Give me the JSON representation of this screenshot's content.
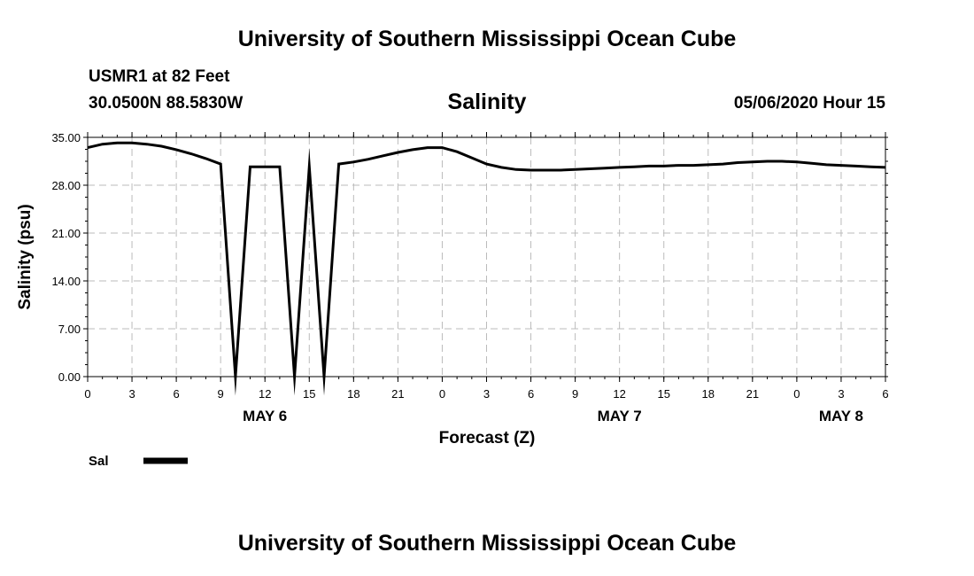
{
  "header": {
    "title": "University of Southern Mississippi Ocean Cube",
    "station": "USMR1 at 82 Feet",
    "coords": "30.0500N 88.5830W",
    "datetime": "05/06/2020 Hour 15"
  },
  "footer": {
    "title": "University of Southern Mississippi Ocean Cube"
  },
  "chart_data": {
    "type": "line",
    "title": "Salinity",
    "xlabel": "Forecast (Z)",
    "ylabel": "Salinity (psu)",
    "x_ticks": [
      "0",
      "3",
      "6",
      "9",
      "12",
      "15",
      "18",
      "21",
      "0",
      "3",
      "6",
      "9",
      "12",
      "15",
      "18",
      "21",
      "0",
      "3",
      "6"
    ],
    "x_tick_hours": [
      0,
      3,
      6,
      9,
      12,
      15,
      18,
      21,
      24,
      27,
      30,
      33,
      36,
      39,
      42,
      45,
      48,
      51,
      54
    ],
    "day_labels": [
      {
        "text": "MAY 6",
        "hour": 12
      },
      {
        "text": "MAY 7",
        "hour": 36
      },
      {
        "text": "MAY 8",
        "hour": 51
      }
    ],
    "xlim": [
      0,
      54
    ],
    "y_ticks": [
      "0.00",
      "7.00",
      "14.00",
      "21.00",
      "28.00",
      "35.00"
    ],
    "ylim": [
      0,
      35
    ],
    "grid": true,
    "line_color": "#000000",
    "series": [
      {
        "name": "Sal",
        "x": [
          0,
          1,
          2,
          3,
          4,
          5,
          6,
          7,
          8,
          9,
          10,
          11,
          12,
          13,
          14,
          15,
          16,
          17,
          18,
          19,
          20,
          21,
          22,
          23,
          24,
          25,
          26,
          27,
          28,
          29,
          30,
          31,
          32,
          33,
          34,
          35,
          36,
          37,
          38,
          39,
          40,
          41,
          42,
          43,
          44,
          45,
          46,
          47,
          48,
          49,
          50,
          51,
          52,
          53,
          54
        ],
        "values": [
          33.5,
          34.0,
          34.2,
          34.2,
          34.0,
          33.7,
          33.2,
          32.6,
          31.9,
          31.1,
          0.0,
          30.7,
          30.7,
          30.7,
          0.0,
          30.7,
          0.0,
          31.1,
          31.4,
          31.8,
          32.3,
          32.8,
          33.2,
          33.5,
          33.5,
          32.9,
          32.0,
          31.1,
          30.6,
          30.3,
          30.2,
          30.2,
          30.2,
          30.3,
          30.4,
          30.5,
          30.6,
          30.7,
          30.8,
          30.8,
          30.9,
          30.9,
          31.0,
          31.1,
          31.3,
          31.4,
          31.5,
          31.5,
          31.4,
          31.2,
          31.0,
          30.9,
          30.8,
          30.7,
          30.6
        ]
      }
    ],
    "legend": {
      "placement": "bottom-left"
    }
  }
}
